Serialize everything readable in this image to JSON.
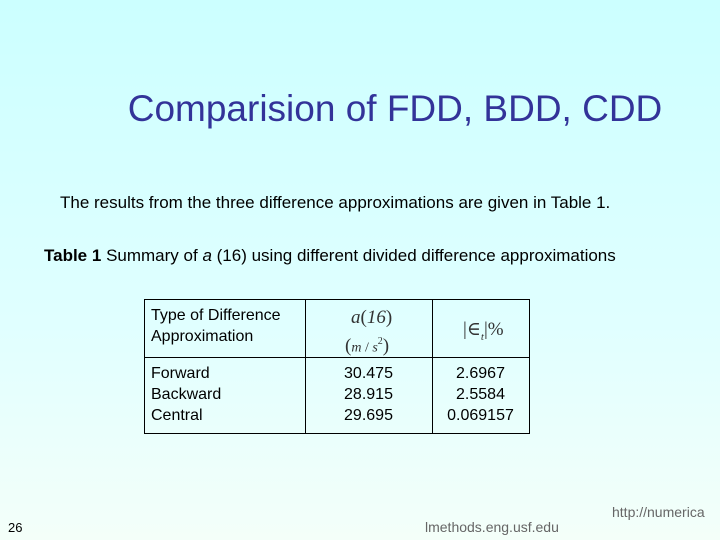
{
  "title": "Comparision of FDD, BDD, CDD",
  "intro": "The results from the three difference approximations are given in Table 1.",
  "caption": {
    "label": "Table 1",
    "before": "Summary of",
    "symbol": "a",
    "after": "(16) using different divided difference approximations"
  },
  "table": {
    "header": {
      "type": "Type of Difference Approximation",
      "value": {
        "symbol": "a",
        "argument": "16",
        "unit_num": "m",
        "unit_den": "s",
        "power": "2"
      },
      "error": {
        "symbol": "∈",
        "subscript": "t",
        "unit": "%"
      }
    },
    "rows": [
      [
        "Forward",
        "30.475",
        "2.6967"
      ],
      [
        "Backward",
        "28.915",
        "2.5584"
      ],
      [
        "Central",
        "29.695",
        "0.069157"
      ]
    ]
  },
  "footer": {
    "page": "26",
    "url_part1": "http://numerica",
    "url_part2": "lmethods.eng.usf.edu"
  }
}
